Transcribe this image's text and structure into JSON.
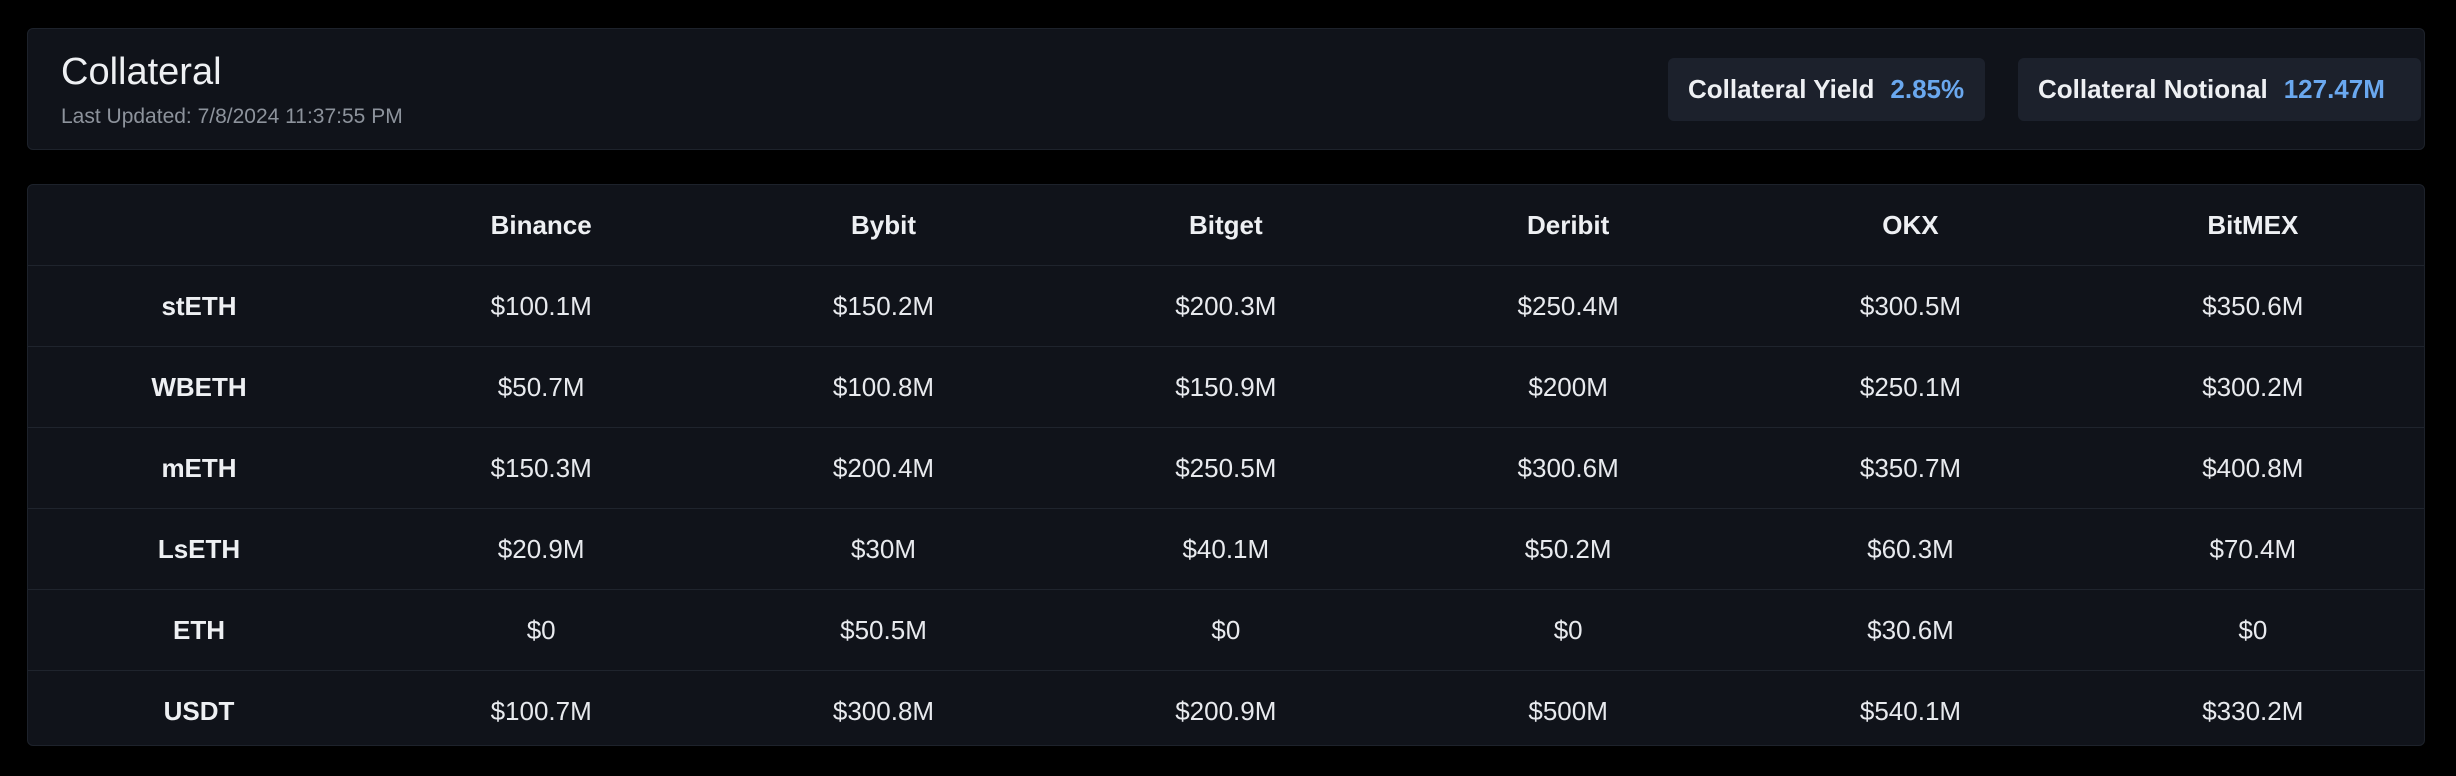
{
  "header": {
    "title": "Collateral",
    "last_updated": "Last Updated: 7/8/2024 11:37:55 PM",
    "stats": {
      "yield_label": "Collateral Yield",
      "yield_value": "2.85%",
      "notional_label": "Collateral Notional",
      "notional_value": "127.47M"
    }
  },
  "table": {
    "columns": [
      "",
      "Binance",
      "Bybit",
      "Bitget",
      "Deribit",
      "OKX",
      "BitMEX"
    ],
    "rows": [
      {
        "label": "stETH",
        "values": [
          "$100.1M",
          "$150.2M",
          "$200.3M",
          "$250.4M",
          "$300.5M",
          "$350.6M"
        ]
      },
      {
        "label": "WBETH",
        "values": [
          "$50.7M",
          "$100.8M",
          "$150.9M",
          "$200M",
          "$250.1M",
          "$300.2M"
        ]
      },
      {
        "label": "mETH",
        "values": [
          "$150.3M",
          "$200.4M",
          "$250.5M",
          "$300.6M",
          "$350.7M",
          "$400.8M"
        ]
      },
      {
        "label": "LsETH",
        "values": [
          "$20.9M",
          "$30M",
          "$40.1M",
          "$50.2M",
          "$60.3M",
          "$70.4M"
        ]
      },
      {
        "label": "ETH",
        "values": [
          "$0",
          "$50.5M",
          "$0",
          "$0",
          "$30.6M",
          "$0"
        ]
      },
      {
        "label": "USDT",
        "values": [
          "$100.7M",
          "$300.8M",
          "$200.9M",
          "$500M",
          "$540.1M",
          "$330.2M"
        ]
      }
    ]
  },
  "colors": {
    "background": "#000000",
    "card": "#10131a",
    "pill": "#1c212c",
    "accent": "#6aa8ef"
  }
}
